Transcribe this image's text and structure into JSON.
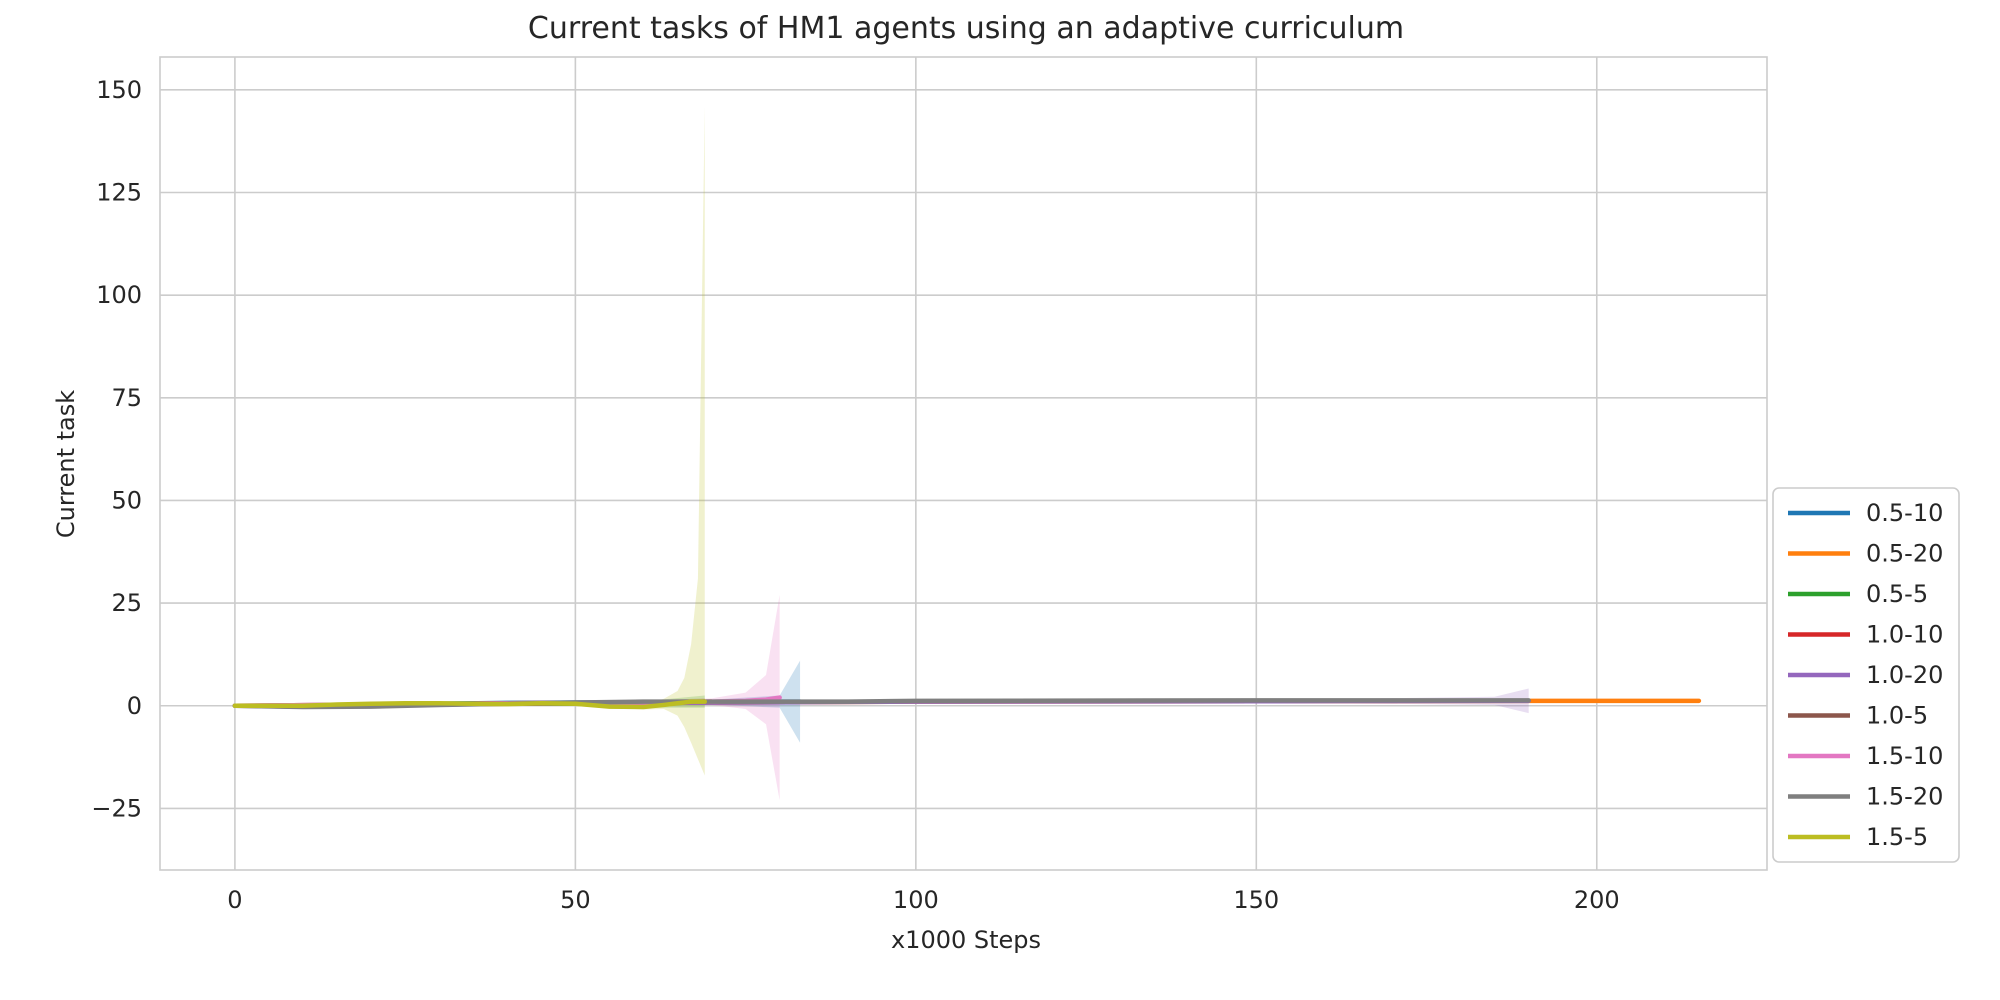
{
  "chart_data": {
    "type": "line",
    "title": "Current tasks of HM1 agents using an adaptive curriculum",
    "xlabel": "x1000 Steps",
    "ylabel": "Current task",
    "xlim": [
      -11,
      225
    ],
    "ylim": [
      -40,
      158
    ],
    "x_ticks": [
      0,
      50,
      100,
      150,
      200
    ],
    "x_tick_labels": [
      "0",
      "50",
      "100",
      "150",
      "200"
    ],
    "y_ticks": [
      -25,
      0,
      25,
      50,
      75,
      100,
      125,
      150
    ],
    "y_tick_labels": [
      "−25",
      "0",
      "25",
      "50",
      "75",
      "100",
      "125",
      "150"
    ],
    "grid": true,
    "legend_position": "lower-right-outside",
    "series": [
      {
        "name": "0.5-10",
        "color": "#1f77b4",
        "x": [
          0,
          10,
          20,
          30,
          40,
          50,
          60,
          70,
          80,
          83
        ],
        "y": [
          0,
          0,
          0.3,
          0.5,
          0.7,
          0.8,
          0.8,
          0.9,
          1.0,
          1.0
        ],
        "spread": [
          0,
          0,
          0.3,
          0.3,
          0.3,
          0.3,
          0.4,
          0.6,
          1.5,
          10
        ]
      },
      {
        "name": "0.5-20",
        "color": "#ff7f0e",
        "x": [
          0,
          20,
          50,
          100,
          150,
          190,
          200,
          215
        ],
        "y": [
          0,
          0.3,
          0.6,
          1.0,
          1.1,
          1.2,
          1.2,
          1.2
        ],
        "spread": [
          0,
          0.2,
          0.3,
          0.3,
          0.3,
          0.3,
          0.3,
          0.3
        ]
      },
      {
        "name": "0.5-5",
        "color": "#2ca02c",
        "x": [
          0,
          10,
          20,
          30,
          40,
          50,
          60,
          69
        ],
        "y": [
          0,
          0,
          0.3,
          0.5,
          0.6,
          0.5,
          0.3,
          1.0
        ],
        "spread": [
          0,
          0.2,
          0.3,
          0.4,
          0.4,
          0.5,
          0.8,
          1.5
        ]
      },
      {
        "name": "1.0-10",
        "color": "#d62728",
        "x": [
          0,
          10,
          20,
          30,
          40,
          50,
          60,
          70
        ],
        "y": [
          0,
          0,
          0.2,
          0.4,
          0.6,
          0.7,
          0.8,
          1.0
        ],
        "spread": [
          0,
          0.2,
          0.3,
          0.3,
          0.3,
          0.3,
          0.4,
          0.6
        ]
      },
      {
        "name": "1.0-20",
        "color": "#9467bd",
        "x": [
          0,
          20,
          50,
          100,
          150,
          185,
          190
        ],
        "y": [
          0,
          0.3,
          0.6,
          1.0,
          1.1,
          1.2,
          1.2
        ],
        "spread": [
          0,
          0.2,
          0.3,
          0.3,
          0.3,
          1.0,
          3.0
        ]
      },
      {
        "name": "1.0-5",
        "color": "#8c564b",
        "x": [
          0,
          10,
          20,
          30,
          40,
          50,
          60,
          69
        ],
        "y": [
          0,
          -0.2,
          0,
          0.3,
          0.5,
          0.6,
          0.8,
          1.0
        ],
        "spread": [
          0,
          0.2,
          0.3,
          0.3,
          0.3,
          0.4,
          0.5,
          0.8
        ]
      },
      {
        "name": "1.5-10",
        "color": "#e377c2",
        "x": [
          0,
          20,
          40,
          60,
          70,
          75,
          78,
          80
        ],
        "y": [
          0,
          0.3,
          0.6,
          0.8,
          1.0,
          1.2,
          1.5,
          2.0
        ],
        "spread": [
          0,
          0.2,
          0.3,
          0.5,
          0.8,
          2.0,
          6.0,
          25.0
        ]
      },
      {
        "name": "1.5-20",
        "color": "#7f7f7f",
        "x": [
          0,
          10,
          20,
          30,
          40,
          50,
          60,
          70,
          80,
          90,
          100,
          150,
          190
        ],
        "y": [
          0,
          -0.3,
          -0.2,
          0.2,
          0.5,
          0.8,
          1.0,
          1.0,
          1.0,
          1.0,
          1.2,
          1.3,
          1.3
        ],
        "spread": [
          0,
          0.2,
          0.2,
          0.3,
          0.3,
          0.3,
          0.3,
          0.3,
          0.3,
          0.3,
          0.3,
          0.3,
          0.3
        ]
      },
      {
        "name": "1.5-5",
        "color": "#bcbd22",
        "x": [
          0,
          10,
          15,
          20,
          25,
          30,
          35,
          40,
          45,
          50,
          55,
          60,
          63,
          65,
          66,
          67,
          68,
          69
        ],
        "y": [
          0,
          0,
          0.3,
          0.5,
          0.6,
          0.6,
          0.5,
          0.4,
          0.6,
          0.5,
          -0.2,
          -0.3,
          0.2,
          0.6,
          0.8,
          1.0,
          1.0,
          1.0
        ],
        "spread_lower": [
          0,
          0.2,
          0.3,
          0.3,
          0.3,
          0.3,
          0.3,
          0.3,
          0.3,
          0.4,
          0.5,
          0.6,
          1.0,
          3.0,
          6.0,
          10.0,
          14.0,
          18.0
        ],
        "spread_upper": [
          0,
          0.2,
          0.3,
          0.3,
          0.3,
          0.3,
          0.3,
          0.3,
          0.3,
          0.4,
          0.5,
          0.6,
          1.5,
          3.0,
          6.0,
          14.0,
          30.0,
          145.0
        ]
      }
    ]
  }
}
